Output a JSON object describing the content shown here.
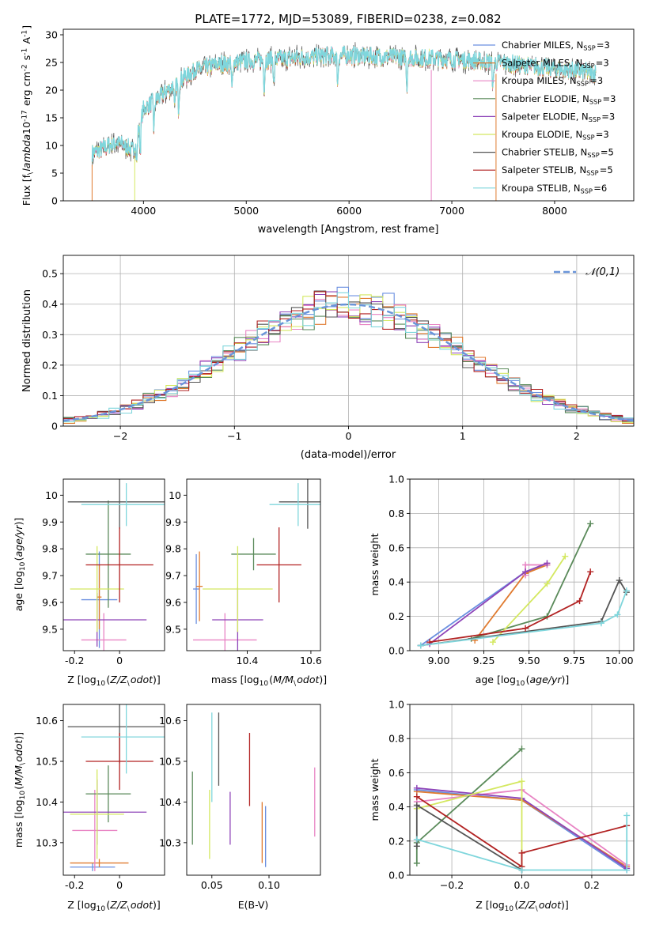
{
  "colors": {
    "chab_miles": "#6a8fe0",
    "salp_miles": "#e07b30",
    "krou_miles": "#e884c4",
    "chab_elod": "#5a8a5a",
    "salp_elod": "#8e44b8",
    "krou_elod": "#d4e860",
    "chab_stel": "#555555",
    "salp_stel": "#b22222",
    "krou_stel": "#7fd6dc",
    "normal_line": "#6a95d9"
  },
  "chart_data": [
    {
      "id": "spectrum",
      "type": "line",
      "title": "PLATE=1772, MJD=53089, FIBERID=0238, z=0.082",
      "xlabel": "wavelength [Angstrom, rest frame]",
      "ylabel": "Flux [f$_\\lambda$10$^{-17}$ erg cm$^{-2}$ s$^{-1}$ A$^{-1}$]",
      "xlim": [
        3220,
        8770
      ],
      "ylim": [
        0,
        31
      ],
      "xticks": [
        4000,
        5000,
        6000,
        7000,
        8000
      ],
      "yticks": [
        0,
        5,
        10,
        15,
        20,
        25,
        30
      ],
      "legend_position": "upper right",
      "legend": [
        {
          "key": "chab_miles",
          "label": "Chabrier MILES, N$_{SSP}$=3"
        },
        {
          "key": "salp_miles",
          "label": "Salpeter MILES, N$_{SSP}$=3"
        },
        {
          "key": "krou_miles",
          "label": "Kroupa MILES, N$_{SSP}$=3"
        },
        {
          "key": "chab_elod",
          "label": "Chabrier ELODIE, N$_{SSP}$=3"
        },
        {
          "key": "salp_elod",
          "label": "Salpeter ELODIE, N$_{SSP}$=3"
        },
        {
          "key": "krou_elod",
          "label": "Kroupa ELODIE, N$_{SSP}$=3"
        },
        {
          "key": "chab_stel",
          "label": "Chabrier STELIB, N$_{SSP}$=5"
        },
        {
          "key": "salp_stel",
          "label": "Salpeter STELIB, N$_{SSP}$=5"
        },
        {
          "key": "krou_stel",
          "label": "Kroupa STELIB, N$_{SSP}$=6"
        }
      ],
      "continuum_x": [
        3500,
        3750,
        3900,
        4000,
        4150,
        4300,
        4500,
        4700,
        4900,
        5100,
        5300,
        5500,
        5700,
        6000,
        6300,
        6600,
        6900,
        7200,
        7400
      ],
      "continuum_y": [
        8.5,
        10.5,
        9.0,
        16.5,
        18.5,
        21.0,
        23.5,
        24.5,
        25.0,
        25.3,
        25.5,
        25.8,
        26.0,
        26.2,
        26.0,
        25.8,
        25.6,
        25.3,
        25.0
      ],
      "dips": [
        3934,
        3969,
        4102,
        4304,
        4341,
        4861,
        5175,
        5270,
        5890,
        6563,
        7400
      ]
    },
    {
      "id": "residuals",
      "type": "step",
      "xlabel": "(data-model)/error",
      "ylabel": "Normed distribution",
      "xlim": [
        -2.5,
        2.5
      ],
      "ylim": [
        0,
        0.56
      ],
      "xticks": [
        -2,
        -1,
        0,
        1,
        2
      ],
      "xtick_labels": [
        "−2",
        "−1",
        "0",
        "1",
        "2"
      ],
      "yticks": [
        0,
        0.1,
        0.2,
        0.3,
        0.4,
        0.5
      ],
      "grid": true,
      "bin_width": 0.1,
      "gaussian_sigma": 1.0,
      "legend_label": "$\\mathcal{N}(0,1)$",
      "legend_position": "upper right"
    },
    {
      "id": "age_vs_Z",
      "type": "errorbar",
      "xlabel": "Z [log$_{10}$($Z/Z_\\odot$)]",
      "ylabel": "age  [log$_{10}$($age/yr$)]",
      "xlim": [
        -0.25,
        0.2
      ],
      "ylim": [
        9.42,
        10.06
      ],
      "xticks": [
        -0.2,
        0.0
      ],
      "yticks": [
        9.5,
        9.6,
        9.7,
        9.8,
        9.9,
        10.0
      ],
      "points": [
        {
          "key": "chab_miles",
          "x": -0.09,
          "xerr": 0.08,
          "y": 9.61,
          "yerr": 0.18
        },
        {
          "key": "salp_miles",
          "x": -0.09,
          "xerr": 0.01,
          "y": 9.62,
          "yerr": 0.12
        },
        {
          "key": "krou_miles",
          "x": -0.07,
          "xerr": 0.1,
          "y": 9.46,
          "yerr": 0.1
        },
        {
          "key": "chab_elod",
          "x": -0.05,
          "xerr": 0.1,
          "y": 9.78,
          "yerr": 0.2
        },
        {
          "key": "salp_elod",
          "x": -0.1,
          "xerr": 0.22,
          "y": 9.535,
          "yerr": 0.1
        },
        {
          "key": "krou_elod",
          "x": -0.1,
          "xerr": 0.12,
          "y": 9.65,
          "yerr": 0.16
        },
        {
          "key": "chab_stel",
          "x": 0.0,
          "xerr": 0.23,
          "y": 9.975,
          "yerr": 0.1
        },
        {
          "key": "salp_stel",
          "x": 0.0,
          "xerr": 0.15,
          "y": 9.74,
          "yerr": 0.14
        },
        {
          "key": "krou_stel",
          "x": 0.03,
          "xerr": 0.2,
          "y": 9.965,
          "yerr": 0.08
        }
      ]
    },
    {
      "id": "age_vs_mass",
      "type": "errorbar",
      "xlabel": "mass [log$_{10}$($M/M_\\odot$)]",
      "ylabel": "",
      "xlim": [
        10.21,
        10.63
      ],
      "ylim": [
        9.42,
        10.06
      ],
      "xticks": [
        10.4,
        10.6
      ],
      "yticks": [
        9.5,
        9.6,
        9.7,
        9.8,
        9.9,
        10.0
      ],
      "points": [
        {
          "key": "chab_miles",
          "x": 10.24,
          "xerr": 0.01,
          "y": 9.65,
          "yerr": 0.13
        },
        {
          "key": "salp_miles",
          "x": 10.25,
          "xerr": 0.01,
          "y": 9.66,
          "yerr": 0.13
        },
        {
          "key": "krou_miles",
          "x": 10.33,
          "xerr": 0.1,
          "y": 9.46,
          "yerr": 0.1
        },
        {
          "key": "chab_elod",
          "x": 10.42,
          "xerr": 0.07,
          "y": 9.78,
          "yerr": 0.06
        },
        {
          "key": "salp_elod",
          "x": 10.37,
          "xerr": 0.08,
          "y": 9.535,
          "yerr": 0.12
        },
        {
          "key": "krou_elod",
          "x": 10.37,
          "xerr": 0.11,
          "y": 9.65,
          "yerr": 0.16
        },
        {
          "key": "chab_stel",
          "x": 10.59,
          "xerr": 0.09,
          "y": 9.975,
          "yerr": 0.1
        },
        {
          "key": "salp_stel",
          "x": 10.5,
          "xerr": 0.07,
          "y": 9.74,
          "yerr": 0.14
        },
        {
          "key": "krou_stel",
          "x": 10.56,
          "xerr": 0.09,
          "y": 9.965,
          "yerr": 0.08
        }
      ]
    },
    {
      "id": "weight_vs_age",
      "type": "line",
      "xlabel": "age  [log$_{10}$($age/yr$)]",
      "ylabel": "mass weight",
      "xlim": [
        8.84,
        10.08
      ],
      "ylim": [
        0,
        1.0
      ],
      "xticks": [
        9.0,
        9.25,
        9.5,
        9.75,
        10.0
      ],
      "xtick_labels": [
        "9.00",
        "9.25",
        "9.50",
        "9.75",
        "10.00"
      ],
      "yticks": [
        0,
        0.2,
        0.4,
        0.6,
        0.8,
        1.0
      ],
      "ytick_labels": [
        "0.0",
        "0.2",
        "0.4",
        "0.6",
        "0.8",
        "1.0"
      ],
      "grid": true,
      "series": [
        {
          "key": "chab_miles",
          "x": [
            8.9,
            9.48,
            9.6
          ],
          "y": [
            0.03,
            0.46,
            0.5
          ]
        },
        {
          "key": "salp_miles",
          "x": [
            9.2,
            9.48,
            9.6
          ],
          "y": [
            0.06,
            0.45,
            0.5
          ]
        },
        {
          "key": "krou_miles",
          "x": [
            9.48,
            9.48,
            9.6
          ],
          "y": [
            0.44,
            0.5,
            0.5
          ]
        },
        {
          "key": "chab_elod",
          "x": [
            9.18,
            9.6,
            9.84
          ],
          "y": [
            0.07,
            0.2,
            0.74
          ]
        },
        {
          "key": "salp_elod",
          "x": [
            8.95,
            9.48,
            9.6
          ],
          "y": [
            0.04,
            0.46,
            0.51
          ]
        },
        {
          "key": "krou_elod",
          "x": [
            9.3,
            9.6,
            9.7
          ],
          "y": [
            0.05,
            0.39,
            0.55
          ]
        },
        {
          "key": "chab_stel",
          "x": [
            8.9,
            9.9,
            10.0,
            10.04
          ],
          "y": [
            0.03,
            0.17,
            0.41,
            0.34
          ]
        },
        {
          "key": "salp_stel",
          "x": [
            8.95,
            9.48,
            9.78,
            9.84
          ],
          "y": [
            0.05,
            0.13,
            0.29,
            0.46
          ]
        },
        {
          "key": "krou_stel",
          "x": [
            8.9,
            9.9,
            9.99,
            10.04
          ],
          "y": [
            0.03,
            0.16,
            0.21,
            0.35
          ]
        }
      ]
    },
    {
      "id": "mass_vs_Z",
      "type": "errorbar",
      "xlabel": "Z [log$_{10}$($Z/Z_\\odot$)]",
      "ylabel": "mass [log$_{10}$($M/M_\\odot$)]",
      "xlim": [
        -0.25,
        0.2
      ],
      "ylim": [
        10.22,
        10.64
      ],
      "xticks": [
        -0.2,
        0.0
      ],
      "yticks": [
        10.3,
        10.4,
        10.5,
        10.6
      ],
      "points": [
        {
          "key": "chab_miles",
          "x": -0.12,
          "xerr": 0.1,
          "y": 10.24,
          "yerr": 0.01
        },
        {
          "key": "salp_miles",
          "x": -0.09,
          "xerr": 0.13,
          "y": 10.25,
          "yerr": 0.01
        },
        {
          "key": "krou_miles",
          "x": -0.11,
          "xerr": 0.1,
          "y": 10.33,
          "yerr": 0.1
        },
        {
          "key": "chab_elod",
          "x": -0.05,
          "xerr": 0.1,
          "y": 10.42,
          "yerr": 0.07
        },
        {
          "key": "salp_elod",
          "x": -0.1,
          "xerr": 0.22,
          "y": 10.375,
          "yerr": 0.08
        },
        {
          "key": "krou_elod",
          "x": -0.1,
          "xerr": 0.12,
          "y": 10.37,
          "yerr": 0.11
        },
        {
          "key": "chab_stel",
          "x": 0.0,
          "xerr": 0.23,
          "y": 10.585,
          "yerr": 0.09
        },
        {
          "key": "salp_stel",
          "x": 0.0,
          "xerr": 0.15,
          "y": 10.5,
          "yerr": 0.07
        },
        {
          "key": "krou_stel",
          "x": 0.03,
          "xerr": 0.2,
          "y": 10.56,
          "yerr": 0.09
        }
      ]
    },
    {
      "id": "mass_vs_ebv",
      "type": "errorbar",
      "xlabel": "E(B-V)",
      "ylabel": "",
      "xlim": [
        0.028,
        0.145
      ],
      "ylim": [
        10.22,
        10.64
      ],
      "xticks": [
        0.05,
        0.1
      ],
      "xtick_labels": [
        "0.05",
        "0.10"
      ],
      "yticks": [
        10.3,
        10.4,
        10.5,
        10.6
      ],
      "points": [
        {
          "key": "chab_miles",
          "x": 0.097,
          "xerr": 0,
          "y": 10.315,
          "yerr": 0.075
        },
        {
          "key": "salp_miles",
          "x": 0.094,
          "xerr": 0,
          "y": 10.325,
          "yerr": 0.075
        },
        {
          "key": "krou_miles",
          "x": 0.14,
          "xerr": 0,
          "y": 10.4,
          "yerr": 0.085
        },
        {
          "key": "chab_elod",
          "x": 0.033,
          "xerr": 0,
          "y": 10.385,
          "yerr": 0.09
        },
        {
          "key": "salp_elod",
          "x": 0.066,
          "xerr": 0,
          "y": 10.36,
          "yerr": 0.065
        },
        {
          "key": "krou_elod",
          "x": 0.048,
          "xerr": 0,
          "y": 10.345,
          "yerr": 0.085
        },
        {
          "key": "chab_stel",
          "x": 0.056,
          "xerr": 0,
          "y": 10.53,
          "yerr": 0.09
        },
        {
          "key": "salp_stel",
          "x": 0.083,
          "xerr": 0,
          "y": 10.48,
          "yerr": 0.09
        },
        {
          "key": "krou_stel",
          "x": 0.05,
          "xerr": 0,
          "y": 10.51,
          "yerr": 0.11
        }
      ]
    },
    {
      "id": "weight_vs_Z",
      "type": "line",
      "xlabel": "Z [log$_{10}$($Z/Z_\\odot$)]",
      "ylabel": "mass weight",
      "xlim": [
        -0.32,
        0.32
      ],
      "ylim": [
        0,
        1.0
      ],
      "xticks": [
        -0.2,
        0.0,
        0.2
      ],
      "xtick_labels": [
        "−0.2",
        "0.0",
        "0.2"
      ],
      "yticks": [
        0,
        0.2,
        0.4,
        0.6,
        0.8,
        1.0
      ],
      "ytick_labels": [
        "0.0",
        "0.2",
        "0.4",
        "0.6",
        "0.8",
        "1.0"
      ],
      "grid": true,
      "series": [
        {
          "key": "chab_miles",
          "x": [
            -0.3,
            0.0,
            0.3
          ],
          "y": [
            0.5,
            0.44,
            0.03
          ]
        },
        {
          "key": "salp_miles",
          "x": [
            -0.3,
            0.0,
            0.3
          ],
          "y": [
            0.49,
            0.44,
            0.05
          ]
        },
        {
          "key": "krou_miles",
          "x": [
            -0.3,
            0.0,
            0.3
          ],
          "y": [
            0.43,
            0.5,
            0.06
          ]
        },
        {
          "key": "chab_elod",
          "x": [
            -0.3,
            -0.3,
            0.0
          ],
          "y": [
            0.07,
            0.19,
            0.74
          ]
        },
        {
          "key": "salp_elod",
          "x": [
            -0.3,
            0.0,
            0.3
          ],
          "y": [
            0.51,
            0.45,
            0.04
          ]
        },
        {
          "key": "krou_elod",
          "x": [
            -0.3,
            0.0,
            0.0
          ],
          "y": [
            0.39,
            0.55,
            0.05
          ]
        },
        {
          "key": "chab_stel",
          "x": [
            -0.3,
            -0.3,
            0.0,
            0.0
          ],
          "y": [
            0.17,
            0.41,
            0.03,
            0.03
          ]
        },
        {
          "key": "salp_stel",
          "x": [
            -0.3,
            0.0,
            0.0,
            0.3
          ],
          "y": [
            0.46,
            0.05,
            0.13,
            0.29
          ]
        },
        {
          "key": "krou_stel",
          "x": [
            -0.3,
            0.0,
            0.3,
            0.3
          ],
          "y": [
            0.21,
            0.03,
            0.03,
            0.35
          ]
        }
      ]
    }
  ]
}
